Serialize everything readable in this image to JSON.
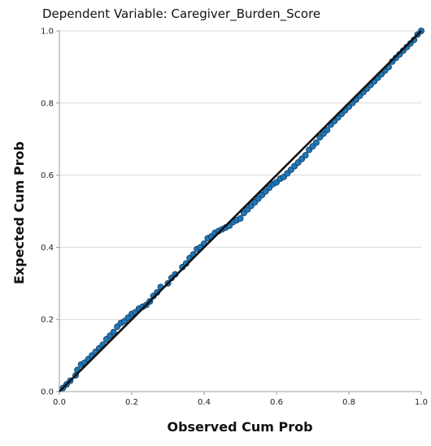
{
  "chart_data": {
    "type": "scatter",
    "title": "Dependent Variable: Caregiver_Burden_Score",
    "xlabel": "Observed Cum Prob",
    "ylabel": "Expected Cum Prob",
    "xlim": [
      0.0,
      1.0
    ],
    "ylim": [
      0.0,
      1.0
    ],
    "xticks": [
      "0.0",
      "0.2",
      "0.4",
      "0.6",
      "0.8",
      "1.0"
    ],
    "yticks": [
      "0.0",
      "0.2",
      "0.4",
      "0.6",
      "0.8",
      "1.0"
    ],
    "grid": "horizontal",
    "reference_line": [
      [
        0.0,
        0.0
      ],
      [
        1.0,
        1.0
      ]
    ],
    "colors": {
      "points": "#1f77b4",
      "reference_line": "#111111",
      "grid": "#d9d9d9",
      "axis": "#999999"
    },
    "points": [
      [
        0.01,
        0.01
      ],
      [
        0.02,
        0.02
      ],
      [
        0.03,
        0.03
      ],
      [
        0.045,
        0.045
      ],
      [
        0.05,
        0.06
      ],
      [
        0.06,
        0.075
      ],
      [
        0.07,
        0.08
      ],
      [
        0.08,
        0.09
      ],
      [
        0.09,
        0.1
      ],
      [
        0.1,
        0.11
      ],
      [
        0.11,
        0.12
      ],
      [
        0.12,
        0.13
      ],
      [
        0.13,
        0.145
      ],
      [
        0.14,
        0.155
      ],
      [
        0.15,
        0.165
      ],
      [
        0.16,
        0.18
      ],
      [
        0.17,
        0.19
      ],
      [
        0.18,
        0.195
      ],
      [
        0.19,
        0.205
      ],
      [
        0.2,
        0.215
      ],
      [
        0.21,
        0.22
      ],
      [
        0.22,
        0.23
      ],
      [
        0.23,
        0.235
      ],
      [
        0.24,
        0.24
      ],
      [
        0.25,
        0.25
      ],
      [
        0.26,
        0.265
      ],
      [
        0.27,
        0.275
      ],
      [
        0.28,
        0.29
      ],
      [
        0.3,
        0.3
      ],
      [
        0.31,
        0.315
      ],
      [
        0.32,
        0.325
      ],
      [
        0.34,
        0.345
      ],
      [
        0.35,
        0.355
      ],
      [
        0.36,
        0.37
      ],
      [
        0.37,
        0.38
      ],
      [
        0.38,
        0.395
      ],
      [
        0.39,
        0.4
      ],
      [
        0.4,
        0.41
      ],
      [
        0.41,
        0.425
      ],
      [
        0.42,
        0.43
      ],
      [
        0.43,
        0.44
      ],
      [
        0.44,
        0.445
      ],
      [
        0.45,
        0.45
      ],
      [
        0.46,
        0.455
      ],
      [
        0.47,
        0.46
      ],
      [
        0.48,
        0.47
      ],
      [
        0.49,
        0.475
      ],
      [
        0.5,
        0.48
      ],
      [
        0.51,
        0.495
      ],
      [
        0.52,
        0.505
      ],
      [
        0.53,
        0.515
      ],
      [
        0.54,
        0.525
      ],
      [
        0.55,
        0.535
      ],
      [
        0.56,
        0.545
      ],
      [
        0.57,
        0.555
      ],
      [
        0.58,
        0.565
      ],
      [
        0.59,
        0.575
      ],
      [
        0.6,
        0.58
      ],
      [
        0.61,
        0.59
      ],
      [
        0.62,
        0.595
      ],
      [
        0.63,
        0.605
      ],
      [
        0.64,
        0.615
      ],
      [
        0.65,
        0.625
      ],
      [
        0.66,
        0.635
      ],
      [
        0.67,
        0.645
      ],
      [
        0.68,
        0.655
      ],
      [
        0.69,
        0.67
      ],
      [
        0.7,
        0.68
      ],
      [
        0.71,
        0.69
      ],
      [
        0.72,
        0.705
      ],
      [
        0.73,
        0.715
      ],
      [
        0.74,
        0.725
      ],
      [
        0.75,
        0.74
      ],
      [
        0.76,
        0.75
      ],
      [
        0.77,
        0.76
      ],
      [
        0.78,
        0.77
      ],
      [
        0.79,
        0.78
      ],
      [
        0.8,
        0.79
      ],
      [
        0.81,
        0.8
      ],
      [
        0.82,
        0.81
      ],
      [
        0.83,
        0.82
      ],
      [
        0.84,
        0.83
      ],
      [
        0.85,
        0.84
      ],
      [
        0.86,
        0.85
      ],
      [
        0.87,
        0.86
      ],
      [
        0.88,
        0.87
      ],
      [
        0.89,
        0.88
      ],
      [
        0.9,
        0.89
      ],
      [
        0.91,
        0.9
      ],
      [
        0.92,
        0.915
      ],
      [
        0.93,
        0.925
      ],
      [
        0.94,
        0.935
      ],
      [
        0.95,
        0.945
      ],
      [
        0.96,
        0.955
      ],
      [
        0.97,
        0.965
      ],
      [
        0.98,
        0.975
      ],
      [
        0.99,
        0.99
      ],
      [
        1.0,
        1.0
      ]
    ]
  }
}
